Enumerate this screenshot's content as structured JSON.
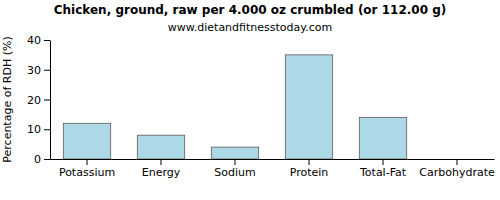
{
  "chart_data": {
    "type": "bar",
    "title": "Chicken, ground, raw per 4.000 oz crumbled (or 112.00 g)",
    "subtitle": "www.dietandfitnesstoday.com",
    "y_label": "Percentage of RDH (%)",
    "categories": [
      "Potassium",
      "Energy",
      "Sodium",
      "Protein",
      "Total-Fat",
      "Carbohydrate"
    ],
    "values": [
      12,
      8,
      4,
      35,
      14,
      0
    ],
    "color": "#add8e6",
    "ylim": [
      0,
      40
    ],
    "yticks": [
      0,
      10,
      20,
      30,
      40
    ],
    "grid": false
  }
}
